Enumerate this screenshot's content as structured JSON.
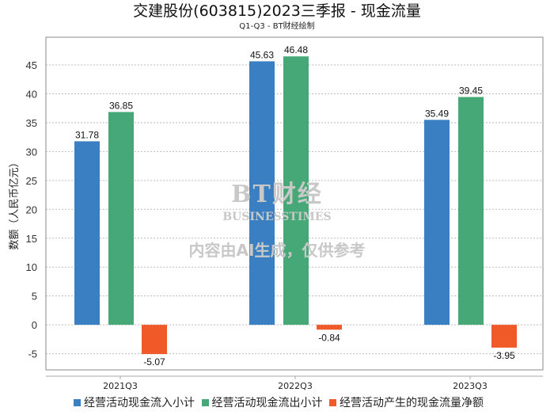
{
  "chart_data": {
    "type": "bar",
    "title": "交建股份(603815)2023三季报 - 现金流量",
    "subtitle": "Q1-Q3 - BT财经绘制",
    "ylabel": "数额（人民币亿元）",
    "xlabel": "",
    "categories": [
      "2021Q3",
      "2022Q3",
      "2023Q3"
    ],
    "series": [
      {
        "name": "经营活动现金流入小计",
        "color": "#3a7fc1",
        "values": [
          31.78,
          45.63,
          35.49
        ]
      },
      {
        "name": "经营活动现金流出小计",
        "color": "#45a876",
        "values": [
          36.85,
          46.48,
          39.45
        ]
      },
      {
        "name": "经营活动产生的现金流量净额",
        "color": "#f05a28",
        "values": [
          -5.07,
          -0.84,
          -3.95
        ]
      }
    ],
    "yticks": [
      -5,
      0,
      5,
      10,
      15,
      20,
      25,
      30,
      35,
      40,
      45
    ],
    "ylim": [
      -7.8,
      49.8
    ],
    "grid": true,
    "legend": "bottom"
  },
  "watermark": {
    "brand": "BT财经",
    "brand_en": "BUSINESSTIMES",
    "notice": "内容由AI生成，仅供参考"
  }
}
